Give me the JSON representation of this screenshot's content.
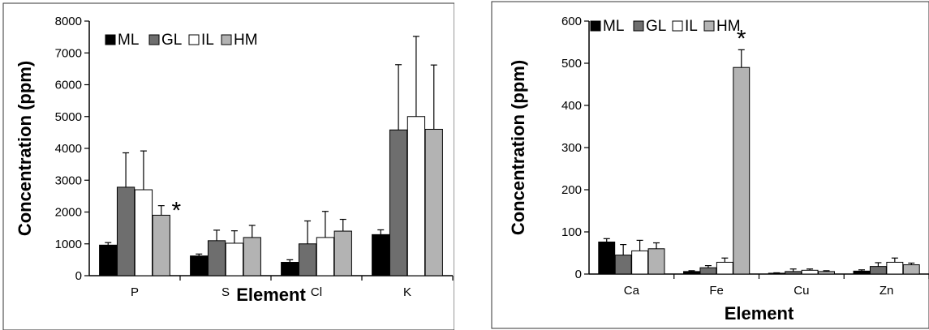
{
  "chart_data": [
    {
      "type": "bar",
      "categories": [
        "P",
        "S",
        "Cl",
        "K"
      ],
      "series": [
        {
          "name": "ML",
          "values": [
            960,
            620,
            420,
            1290
          ],
          "errors": [
            80,
            60,
            80,
            150
          ]
        },
        {
          "name": "GL",
          "values": [
            2780,
            1100,
            1000,
            4580
          ],
          "errors": [
            1080,
            330,
            720,
            2050
          ]
        },
        {
          "name": "IL",
          "values": [
            2700,
            1020,
            1200,
            5000
          ],
          "errors": [
            1220,
            390,
            820,
            2520
          ]
        },
        {
          "name": "HM",
          "values": [
            1900,
            1200,
            1400,
            4600
          ],
          "errors": [
            300,
            380,
            370,
            2020
          ]
        }
      ],
      "annotations": [
        {
          "text": "*",
          "series": "HM",
          "category": "P"
        }
      ],
      "xlabel": "Element",
      "ylabel": "Concentration (ppm)",
      "ylim": [
        0,
        8000
      ],
      "yticks": [
        "0",
        "1000",
        "2000",
        "3000",
        "4000",
        "5000",
        "6000",
        "7000",
        "8000"
      ],
      "grid": false,
      "legend": "top-left",
      "colors": {
        "ML": "#000000",
        "GL": "#6e6e6e",
        "IL": "#ffffff",
        "HM": "#b3b3b3"
      }
    },
    {
      "type": "bar",
      "categories": [
        "Ca",
        "Fe",
        "Cu",
        "Zn"
      ],
      "series": [
        {
          "name": "ML",
          "values": [
            76,
            6,
            2,
            7
          ],
          "errors": [
            8,
            2,
            1,
            3
          ]
        },
        {
          "name": "GL",
          "values": [
            45,
            15,
            6,
            18
          ],
          "errors": [
            25,
            5,
            6,
            9
          ]
        },
        {
          "name": "IL",
          "values": [
            55,
            28,
            9,
            28
          ],
          "errors": [
            25,
            10,
            3,
            10
          ]
        },
        {
          "name": "HM",
          "values": [
            60,
            490,
            6,
            22
          ],
          "errors": [
            14,
            42,
            2,
            4
          ]
        }
      ],
      "annotations": [
        {
          "text": "*",
          "series": "HM",
          "category": "Fe"
        }
      ],
      "xlabel": "Element",
      "ylabel": "Concentration (ppm)",
      "ylim": [
        0,
        600
      ],
      "yticks": [
        "0",
        "100",
        "200",
        "300",
        "400",
        "500",
        "600"
      ],
      "grid": false,
      "legend": "top-left",
      "colors": {
        "ML": "#000000",
        "GL": "#6e6e6e",
        "IL": "#ffffff",
        "HM": "#b3b3b3"
      }
    }
  ]
}
